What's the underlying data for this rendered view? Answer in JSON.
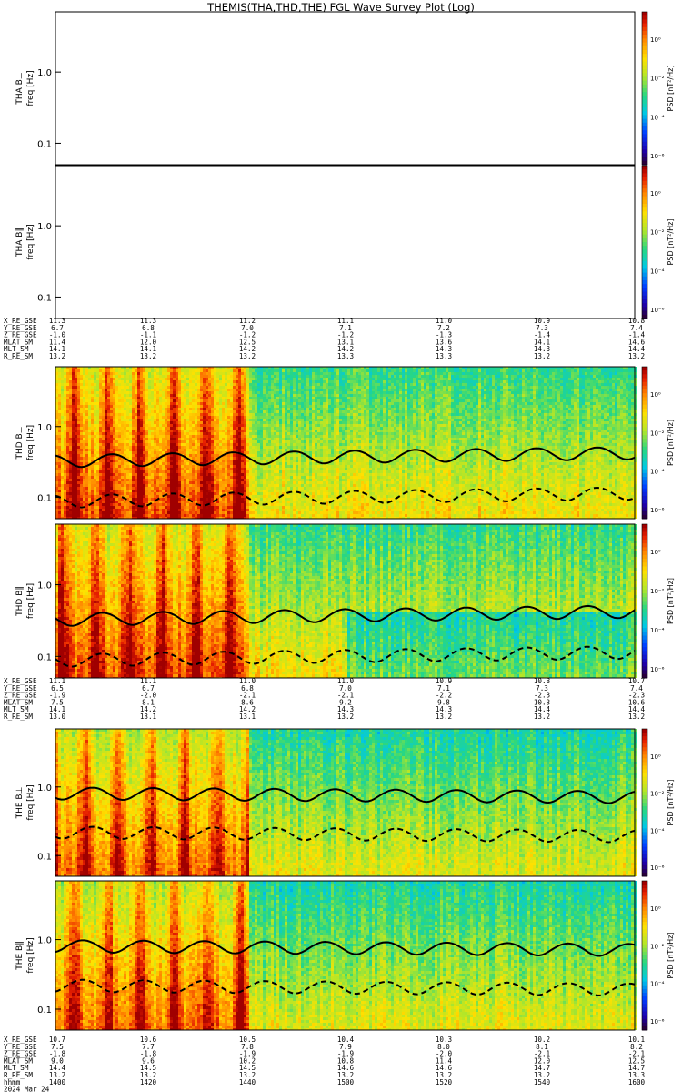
{
  "chart_data": {
    "type": "heatmap",
    "title": "THEMIS(THA,THD,THE) FGL Wave Survey Plot (Log)",
    "scale": "log",
    "panels": [
      {
        "spacecraft": "THA",
        "component": "B⊥",
        "ylabel": "freq [Hz]",
        "yticks": [
          "1.0",
          "0.1"
        ],
        "cbar_label": "PSD [nT²/Hz]",
        "cbar_ticks": [
          "10⁰",
          "10⁻²",
          "10⁻⁴",
          "10⁻⁶"
        ],
        "has_data": false
      },
      {
        "spacecraft": "THA",
        "component": "B∥",
        "ylabel": "freq [Hz]",
        "yticks": [
          "1.0",
          "0.1"
        ],
        "cbar_label": "PSD [nT²/Hz]",
        "cbar_ticks": [
          "10⁰",
          "10⁻²",
          "10⁻⁴",
          "10⁻⁶"
        ],
        "has_data": false
      },
      {
        "spacecraft": "THD",
        "component": "B⊥",
        "ylabel": "freq [Hz]",
        "yticks": [
          "1.0",
          "0.1"
        ],
        "cbar_label": "PSD [nT²/Hz]",
        "cbar_ticks": [
          "10⁰",
          "10⁻²",
          "10⁻⁴",
          "10⁻⁶"
        ],
        "has_data": true,
        "variant": 0
      },
      {
        "spacecraft": "THD",
        "component": "B∥",
        "ylabel": "freq [Hz]",
        "yticks": [
          "1.0",
          "0.1"
        ],
        "cbar_label": "PSD [nT²/Hz]",
        "cbar_ticks": [
          "10⁰",
          "10⁻²",
          "10⁻⁴",
          "10⁻⁶"
        ],
        "has_data": true,
        "variant": 1
      },
      {
        "spacecraft": "THE",
        "component": "B⊥",
        "ylabel": "freq [Hz]",
        "yticks": [
          "1.0",
          "0.1"
        ],
        "cbar_label": "PSD [nT²/Hz]",
        "cbar_ticks": [
          "10⁰",
          "10⁻²",
          "10⁻⁴",
          "10⁻⁶"
        ],
        "has_data": true,
        "variant": 2
      },
      {
        "spacecraft": "THE",
        "component": "B∥",
        "ylabel": "freq [Hz]",
        "yticks": [
          "1.0",
          "0.1"
        ],
        "cbar_label": "PSD [nT²/Hz]",
        "cbar_ticks": [
          "10⁰",
          "10⁻²",
          "10⁻⁴",
          "10⁻⁶"
        ],
        "has_data": true,
        "variant": 3
      }
    ],
    "ephemeris": [
      {
        "labels": [
          "X_RE_GSE",
          "Y_RE_GSE",
          "Z_RE_GSE",
          "MLAT_SM",
          "MLT_SM",
          "R_RE_SM"
        ],
        "rows": [
          [
            "11.3",
            "11.3",
            "11.2",
            "11.1",
            "11.0",
            "10.9",
            "10.8"
          ],
          [
            "6.7",
            "6.8",
            "7.0",
            "7.1",
            "7.2",
            "7.3",
            "7.4"
          ],
          [
            "-1.0",
            "-1.1",
            "-1.2",
            "-1.2",
            "-1.3",
            "-1.4",
            "-1.4"
          ],
          [
            "11.4",
            "12.0",
            "12.5",
            "13.1",
            "13.6",
            "14.1",
            "14.6"
          ],
          [
            "14.1",
            "14.1",
            "14.2",
            "14.2",
            "14.3",
            "14.3",
            "14.4"
          ],
          [
            "13.2",
            "13.2",
            "13.2",
            "13.3",
            "13.3",
            "13.2",
            "13.2"
          ]
        ]
      },
      {
        "labels": [
          "X_RE_GSE",
          "Y_RE_GSE",
          "Z_RE_GSE",
          "MLAT_SM",
          "MLT_SM",
          "R_RE_SM"
        ],
        "rows": [
          [
            "11.1",
            "11.1",
            "11.0",
            "11.0",
            "10.9",
            "10.8",
            "10.7"
          ],
          [
            "6.5",
            "6.7",
            "6.8",
            "7.0",
            "7.1",
            "7.3",
            "7.4"
          ],
          [
            "-1.9",
            "-2.0",
            "-2.1",
            "-2.1",
            "-2.2",
            "-2.3",
            "-2.3"
          ],
          [
            "7.5",
            "8.1",
            "8.6",
            "9.2",
            "9.8",
            "10.3",
            "10.6"
          ],
          [
            "14.1",
            "14.2",
            "14.2",
            "14.3",
            "14.3",
            "14.4",
            "14.4"
          ],
          [
            "13.0",
            "13.1",
            "13.1",
            "13.2",
            "13.2",
            "13.2",
            "13.2"
          ]
        ]
      },
      {
        "labels": [
          "X_RE_GSE",
          "Y_RE_GSE",
          "Z_RE_GSE",
          "MLAT_SM",
          "MLT_SM",
          "R_RE_SM",
          "hhmm",
          "2024 Mar 24"
        ],
        "rows": [
          [
            "10.7",
            "10.6",
            "10.5",
            "10.4",
            "10.3",
            "10.2",
            "10.1"
          ],
          [
            "7.5",
            "7.7",
            "7.8",
            "7.9",
            "8.0",
            "8.1",
            "8.2"
          ],
          [
            "-1.8",
            "-1.8",
            "-1.9",
            "-1.9",
            "-2.0",
            "-2.1",
            "-2.1"
          ],
          [
            "9.0",
            "9.6",
            "10.2",
            "10.8",
            "11.4",
            "12.0",
            "12.5"
          ],
          [
            "14.4",
            "14.5",
            "14.5",
            "14.6",
            "14.6",
            "14.7",
            "14.7"
          ],
          [
            "13.2",
            "13.2",
            "13.2",
            "13.2",
            "13.2",
            "13.2",
            "13.3"
          ],
          [
            "1400",
            "1420",
            "1440",
            "1500",
            "1520",
            "1540",
            "1600"
          ]
        ]
      }
    ]
  }
}
